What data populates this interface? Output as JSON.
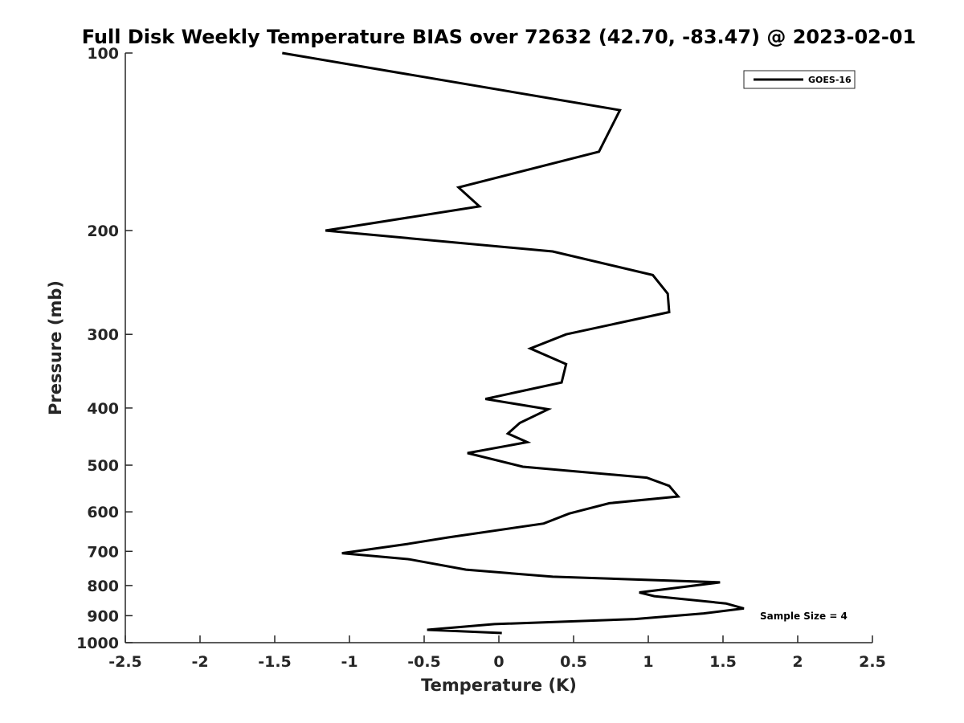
{
  "chart_data": {
    "type": "line",
    "title": "Full Disk Weekly Temperature BIAS over 72632 (42.70, -83.47) @ 2023-02-01",
    "xlabel": "Temperature (K)",
    "ylabel": "Pressure (mb)",
    "xlim": [
      -2.5,
      2.5
    ],
    "ylim": [
      100,
      1000
    ],
    "y_scale": "log",
    "y_reversed": true,
    "grid": false,
    "x_ticks": [
      "-2.5",
      "-2",
      "-1.5",
      "-1",
      "-0.5",
      "0",
      "0.5",
      "1",
      "1.5",
      "2",
      "2.5"
    ],
    "y_ticks": [
      "100",
      "200",
      "300",
      "400",
      "500",
      "600",
      "700",
      "800",
      "900",
      "1000"
    ],
    "legend": {
      "position": "top-right",
      "entries": [
        "GOES-16"
      ]
    },
    "annotation": "Sample Size = 4",
    "series": [
      {
        "name": "GOES-16",
        "color": "#000000",
        "points": [
          [
            -1.45,
            100
          ],
          [
            0.81,
            125
          ],
          [
            0.67,
            147
          ],
          [
            -0.27,
            169
          ],
          [
            -0.13,
            182
          ],
          [
            -1.16,
            200
          ],
          [
            0.36,
            217
          ],
          [
            1.03,
            238
          ],
          [
            1.13,
            256
          ],
          [
            1.14,
            275
          ],
          [
            0.45,
            300
          ],
          [
            0.21,
            317
          ],
          [
            0.45,
            337
          ],
          [
            0.42,
            362
          ],
          [
            -0.09,
            386
          ],
          [
            0.33,
            402
          ],
          [
            0.14,
            424
          ],
          [
            0.06,
            442
          ],
          [
            0.19,
            457
          ],
          [
            -0.21,
            477
          ],
          [
            0.16,
            503
          ],
          [
            0.99,
            525
          ],
          [
            1.14,
            542
          ],
          [
            1.2,
            565
          ],
          [
            0.74,
            580
          ],
          [
            0.47,
            604
          ],
          [
            0.3,
            628
          ],
          [
            -0.34,
            663
          ],
          [
            -0.61,
            680
          ],
          [
            -1.05,
            705
          ],
          [
            -0.6,
            722
          ],
          [
            -0.22,
            752
          ],
          [
            0.36,
            773
          ],
          [
            1.48,
            790
          ],
          [
            0.94,
            822
          ],
          [
            1.04,
            834
          ],
          [
            1.52,
            858
          ],
          [
            1.64,
            875
          ],
          [
            1.37,
            892
          ],
          [
            0.91,
            912
          ],
          [
            -0.03,
            930
          ],
          [
            -0.48,
            951
          ],
          [
            0.02,
            963
          ]
        ]
      }
    ]
  }
}
